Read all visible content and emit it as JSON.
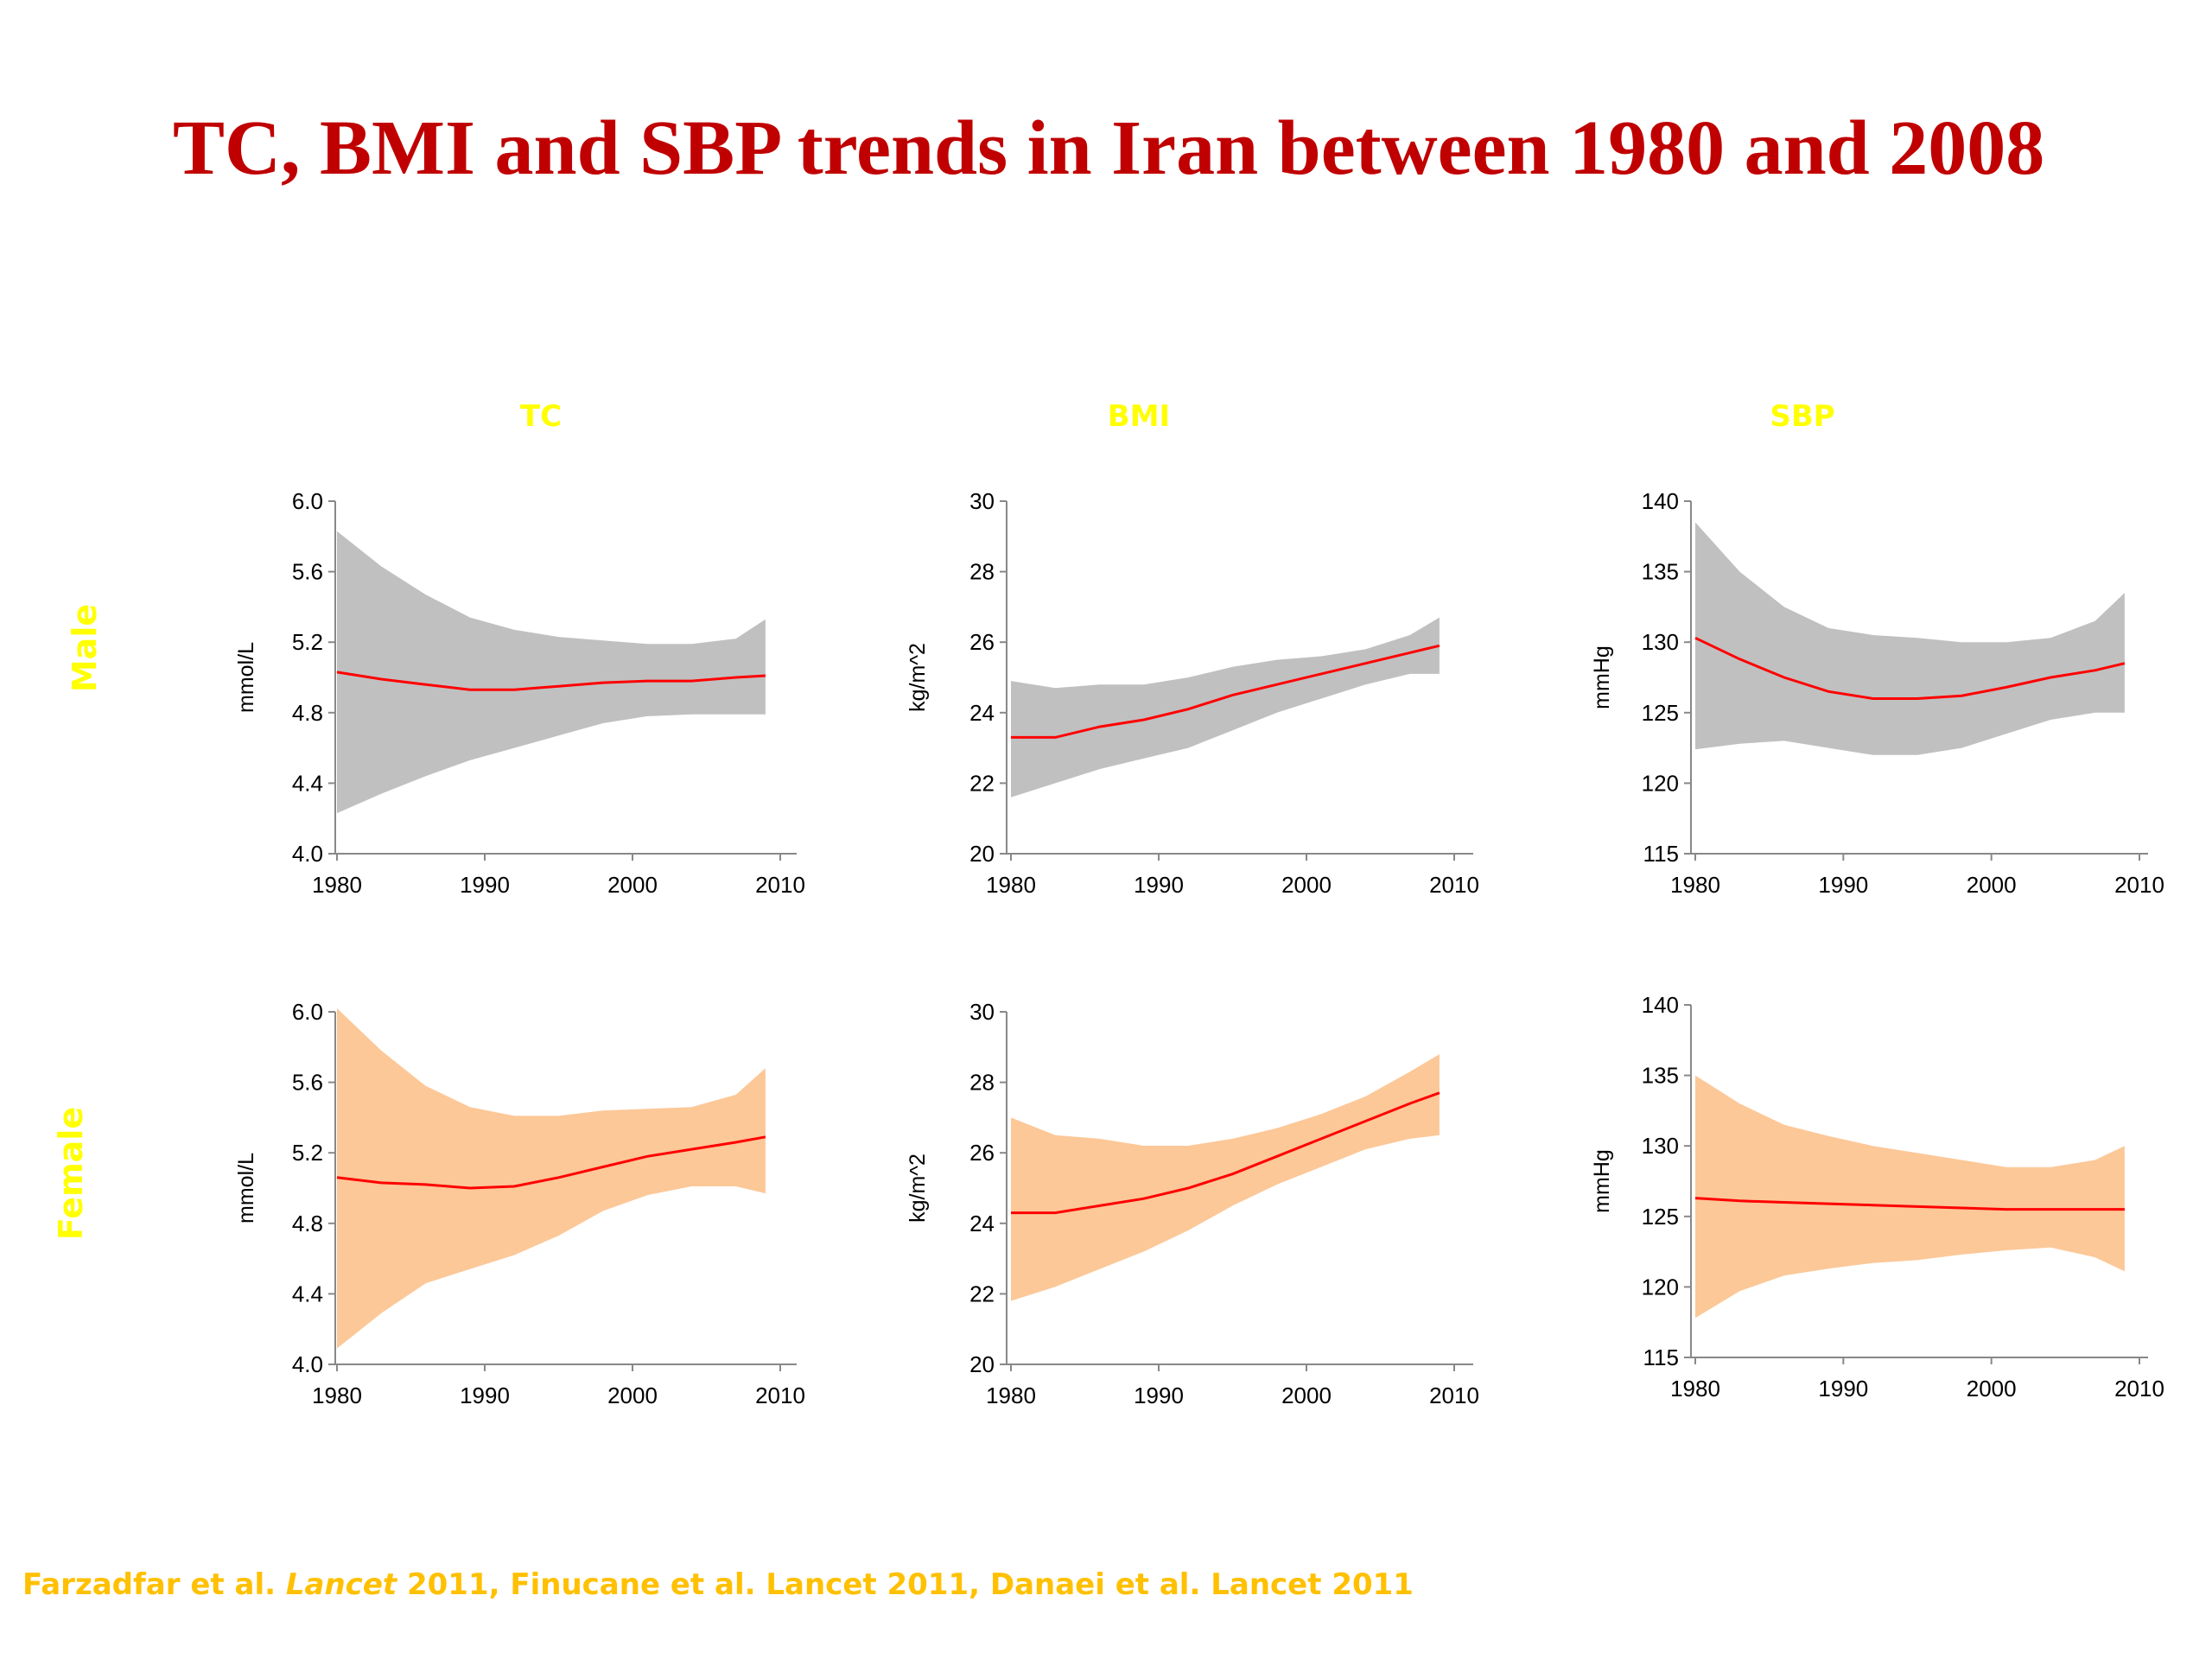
{
  "slide": {
    "title": "TC, BMI and SBP trends in Iran between 1980 and 2008",
    "columns": [
      "TC",
      "BMI",
      "SBP"
    ],
    "rows": [
      "Male",
      "Female"
    ],
    "citation": {
      "part1": "Farzadfar et al. ",
      "part2": "Lancet",
      "part3": " 2011, Finucane et al. Lancet 2011, Danaei et al. Lancet 2011"
    }
  },
  "colors": {
    "title": "#c00000",
    "labels": "#ffff00",
    "citation": "#ffc000",
    "line": "#ff0000",
    "band_male": "#c0c0c0",
    "band_female": "#fcc898"
  },
  "chart_data": [
    {
      "type": "area",
      "name": "tc-male",
      "ylabel": "mmol/L",
      "xlim": [
        1980,
        2010
      ],
      "ylim": [
        4.0,
        6.0
      ],
      "xticks": [
        "1980",
        "1990",
        "2000",
        "2010"
      ],
      "yticks": [
        "6.0",
        "5.6",
        "5.2",
        "4.8",
        "4.4",
        "4.0"
      ],
      "x": [
        1980,
        1983,
        1986,
        1989,
        1992,
        1995,
        1998,
        2001,
        2004,
        2007,
        2009
      ],
      "mean": [
        5.03,
        4.99,
        4.96,
        4.93,
        4.93,
        4.95,
        4.97,
        4.98,
        4.98,
        5.0,
        5.01
      ],
      "lower": [
        4.23,
        4.34,
        4.44,
        4.53,
        4.6,
        4.67,
        4.74,
        4.78,
        4.79,
        4.79,
        4.79
      ],
      "upper": [
        5.83,
        5.63,
        5.47,
        5.34,
        5.27,
        5.23,
        5.21,
        5.19,
        5.19,
        5.22,
        5.33
      ]
    },
    {
      "type": "area",
      "name": "bmi-male",
      "ylabel": "kg/m^2",
      "xlim": [
        1980,
        2010
      ],
      "ylim": [
        20,
        30
      ],
      "xticks": [
        "1980",
        "1990",
        "2000",
        "2010"
      ],
      "yticks": [
        "30",
        "28",
        "26",
        "24",
        "22",
        "20"
      ],
      "x": [
        1980,
        1983,
        1986,
        1989,
        1992,
        1995,
        1998,
        2001,
        2004,
        2007,
        2009
      ],
      "mean": [
        23.3,
        23.3,
        23.6,
        23.8,
        24.1,
        24.5,
        24.8,
        25.1,
        25.4,
        25.7,
        25.9
      ],
      "lower": [
        21.6,
        22.0,
        22.4,
        22.7,
        23.0,
        23.5,
        24.0,
        24.4,
        24.8,
        25.1,
        25.1
      ],
      "upper": [
        24.9,
        24.7,
        24.8,
        24.8,
        25.0,
        25.3,
        25.5,
        25.6,
        25.8,
        26.2,
        26.7
      ]
    },
    {
      "type": "area",
      "name": "sbp-male",
      "ylabel": "mmHg",
      "xlim": [
        1980,
        2010
      ],
      "ylim": [
        115,
        140
      ],
      "xticks": [
        "1980",
        "1990",
        "2000",
        "2010"
      ],
      "yticks": [
        "140",
        "135",
        "130",
        "125",
        "120",
        "115"
      ],
      "x": [
        1980,
        1983,
        1986,
        1989,
        1992,
        1995,
        1998,
        2001,
        2004,
        2007,
        2009
      ],
      "mean": [
        130.3,
        128.8,
        127.5,
        126.5,
        126.0,
        126.0,
        126.2,
        126.8,
        127.5,
        128.0,
        128.5
      ],
      "lower": [
        122.4,
        122.8,
        123.0,
        122.5,
        122.0,
        122.0,
        122.5,
        123.5,
        124.5,
        125.0,
        125.0
      ],
      "upper": [
        138.5,
        135.0,
        132.5,
        131.0,
        130.5,
        130.3,
        130.0,
        130.0,
        130.3,
        131.5,
        133.5
      ]
    },
    {
      "type": "area",
      "name": "tc-female",
      "ylabel": "mmol/L",
      "xlim": [
        1980,
        2010
      ],
      "ylim": [
        4.0,
        6.0
      ],
      "xticks": [
        "1980",
        "1990",
        "2000",
        "2010"
      ],
      "yticks": [
        "6.0",
        "5.6",
        "5.2",
        "4.8",
        "4.4",
        "4.0"
      ],
      "x": [
        1980,
        1983,
        1986,
        1989,
        1992,
        1995,
        1998,
        2001,
        2004,
        2007,
        2009
      ],
      "mean": [
        5.06,
        5.03,
        5.02,
        5.0,
        5.01,
        5.06,
        5.12,
        5.18,
        5.22,
        5.26,
        5.29
      ],
      "lower": [
        4.09,
        4.29,
        4.46,
        4.54,
        4.62,
        4.73,
        4.87,
        4.96,
        5.01,
        5.01,
        4.97
      ],
      "upper": [
        6.02,
        5.78,
        5.58,
        5.46,
        5.41,
        5.41,
        5.44,
        5.45,
        5.46,
        5.53,
        5.68
      ]
    },
    {
      "type": "area",
      "name": "bmi-female",
      "ylabel": "kg/m^2",
      "xlim": [
        1980,
        2010
      ],
      "ylim": [
        20,
        30
      ],
      "xticks": [
        "1980",
        "1990",
        "2000",
        "2010"
      ],
      "yticks": [
        "30",
        "28",
        "26",
        "24",
        "22",
        "20"
      ],
      "x": [
        1980,
        1983,
        1986,
        1989,
        1992,
        1995,
        1998,
        2001,
        2004,
        2007,
        2009
      ],
      "mean": [
        24.3,
        24.3,
        24.5,
        24.7,
        25.0,
        25.4,
        25.9,
        26.4,
        26.9,
        27.4,
        27.7
      ],
      "lower": [
        21.8,
        22.2,
        22.7,
        23.2,
        23.8,
        24.5,
        25.1,
        25.6,
        26.1,
        26.4,
        26.5
      ],
      "upper": [
        27.0,
        26.5,
        26.4,
        26.2,
        26.2,
        26.4,
        26.7,
        27.1,
        27.6,
        28.3,
        28.8
      ]
    },
    {
      "type": "area",
      "name": "sbp-female",
      "ylabel": "mmHg",
      "xlim": [
        1980,
        2010
      ],
      "ylim": [
        115,
        140
      ],
      "xticks": [
        "1980",
        "1990",
        "2000",
        "2010"
      ],
      "yticks": [
        "140",
        "135",
        "130",
        "125",
        "120",
        "115"
      ],
      "x": [
        1980,
        1983,
        1986,
        1989,
        1992,
        1995,
        1998,
        2001,
        2004,
        2007,
        2009
      ],
      "mean": [
        126.3,
        126.1,
        126.0,
        125.9,
        125.8,
        125.7,
        125.6,
        125.5,
        125.5,
        125.5,
        125.5
      ],
      "lower": [
        117.8,
        119.7,
        120.8,
        121.3,
        121.7,
        121.9,
        122.3,
        122.6,
        122.8,
        122.1,
        121.1
      ],
      "upper": [
        135.0,
        133.0,
        131.5,
        130.7,
        130.0,
        129.5,
        129.0,
        128.5,
        128.5,
        129.0,
        130.0
      ]
    }
  ]
}
